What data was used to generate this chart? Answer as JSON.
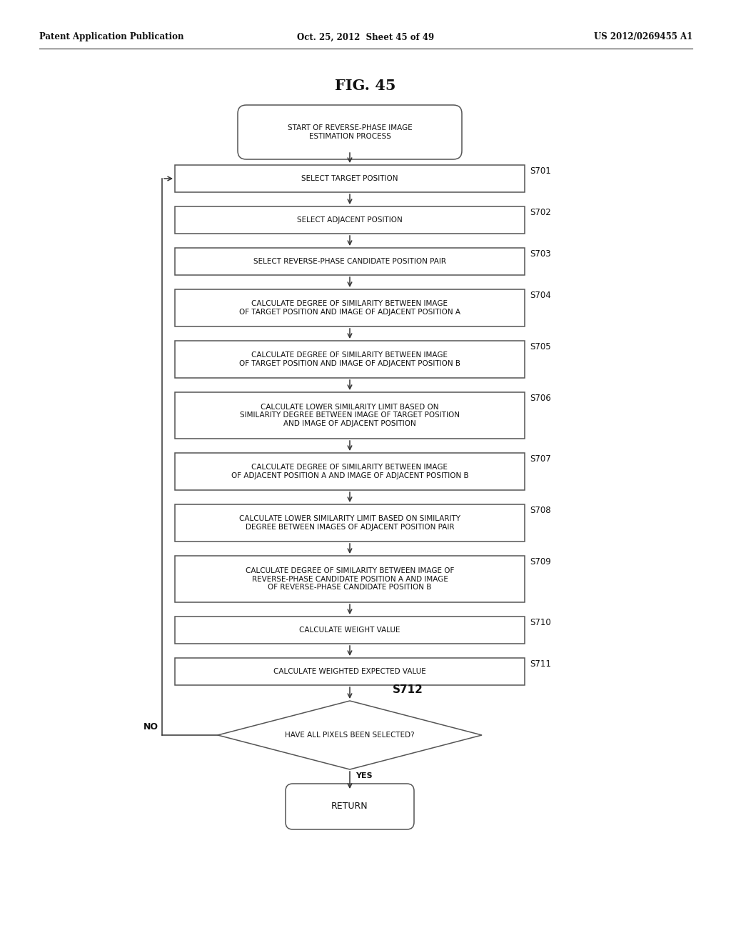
{
  "title": "FIG. 45",
  "header_left": "Patent Application Publication",
  "header_center": "Oct. 25, 2012  Sheet 45 of 49",
  "header_right": "US 2012/0269455 A1",
  "background_color": "#ffffff",
  "box_edge_color": "#555555",
  "text_color": "#111111",
  "fig_width": 10.24,
  "fig_height": 13.2,
  "start_box": "START OF REVERSE-PHASE IMAGE\nESTIMATION PROCESS",
  "steps": [
    {
      "label": "SELECT TARGET POSITION",
      "step_id": "S701",
      "nlines": 1
    },
    {
      "label": "SELECT ADJACENT POSITION",
      "step_id": "S702",
      "nlines": 1
    },
    {
      "label": "SELECT REVERSE-PHASE CANDIDATE POSITION PAIR",
      "step_id": "S703",
      "nlines": 1
    },
    {
      "label": "CALCULATE DEGREE OF SIMILARITY BETWEEN IMAGE\nOF TARGET POSITION AND IMAGE OF ADJACENT POSITION A",
      "step_id": "S704",
      "nlines": 2
    },
    {
      "label": "CALCULATE DEGREE OF SIMILARITY BETWEEN IMAGE\nOF TARGET POSITION AND IMAGE OF ADJACENT POSITION B",
      "step_id": "S705",
      "nlines": 2
    },
    {
      "label": "CALCULATE LOWER SIMILARITY LIMIT BASED ON\nSIMILARITY DEGREE BETWEEN IMAGE OF TARGET POSITION\nAND IMAGE OF ADJACENT POSITION",
      "step_id": "S706",
      "nlines": 3
    },
    {
      "label": "CALCULATE DEGREE OF SIMILARITY BETWEEN IMAGE\nOF ADJACENT POSITION A AND IMAGE OF ADJACENT POSITION B",
      "step_id": "S707",
      "nlines": 2
    },
    {
      "label": "CALCULATE LOWER SIMILARITY LIMIT BASED ON SIMILARITY\nDEGREE BETWEEN IMAGES OF ADJACENT POSITION PAIR",
      "step_id": "S708",
      "nlines": 2
    },
    {
      "label": "CALCULATE DEGREE OF SIMILARITY BETWEEN IMAGE OF\nREVERSE-PHASE CANDIDATE POSITION A AND IMAGE\nOF REVERSE-PHASE CANDIDATE POSITION B",
      "step_id": "S709",
      "nlines": 3
    },
    {
      "label": "CALCULATE WEIGHT VALUE",
      "step_id": "S710",
      "nlines": 1
    },
    {
      "label": "CALCULATE WEIGHTED EXPECTED VALUE",
      "step_id": "S711",
      "nlines": 1
    }
  ],
  "diamond_label": "HAVE ALL PIXELS BEEN SELECTED?",
  "diamond_step_id": "S712",
  "end_box": "RETURN",
  "no_label": "NO",
  "yes_label": "YES"
}
